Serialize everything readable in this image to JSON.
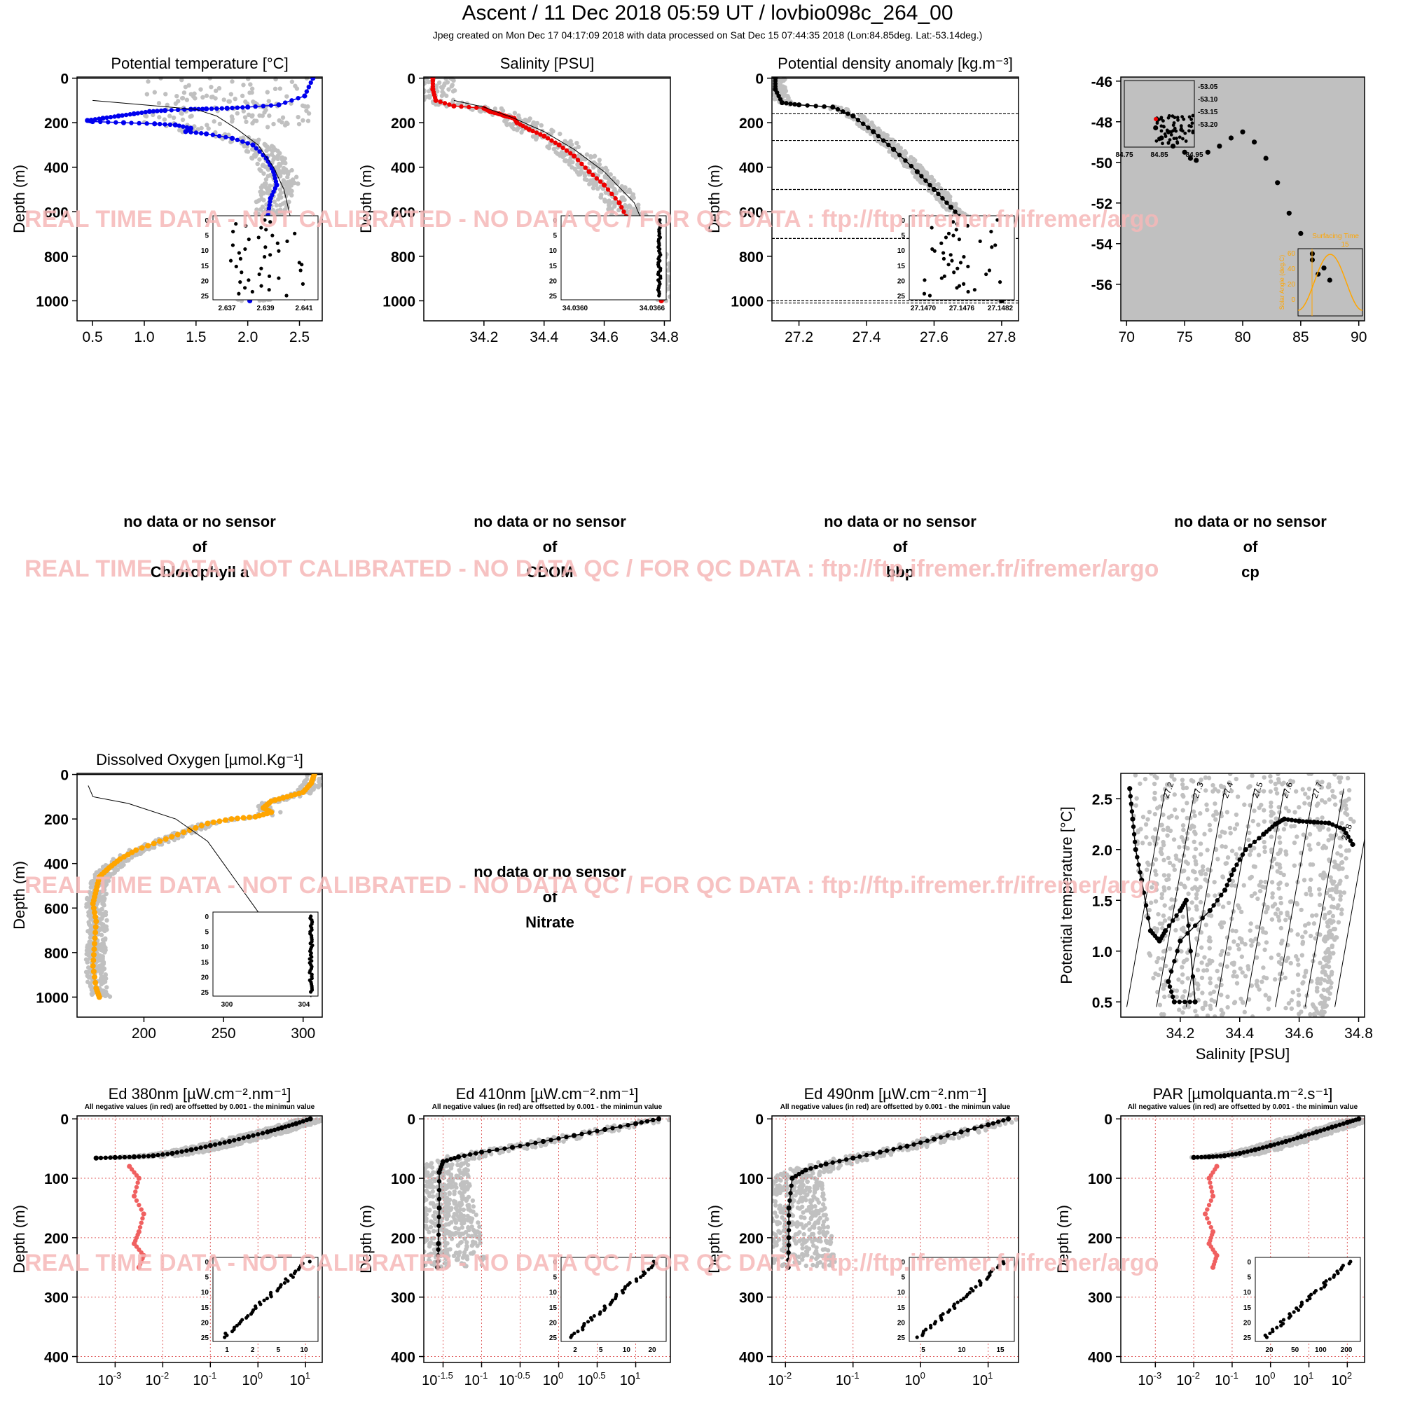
{
  "title": "Ascent / 11 Dec 2018 05:59 UT /  lovbio098c_264_00",
  "subtitle": "Jpeg created on Mon Dec 17 04:17:09 2018 with data processed on Sat Dec 15 07:44:35 2018 (Lon:84.85deg. Lat:-53.14deg.)",
  "watermark": "REAL TIME DATA - NOT CALIBRATED - NO DATA QC   /  FOR QC DATA : ftp://ftp.ifremer.fr/ifremer/argo",
  "colors": {
    "gray": "#c0c0c0",
    "blue": "#0000ee",
    "red": "#ee0000",
    "orange": "#ffa500",
    "neg_red": "#f06060",
    "watermark": "#f6b8b8"
  },
  "no_data": {
    "line1": "no data or no sensor",
    "line2": "of",
    "panels": [
      "Chlorophyll a",
      "CDOM",
      "bbp",
      "cp",
      "Nitrate"
    ]
  },
  "chart_data": [
    {
      "type": "scatter",
      "title": "Potential temperature [°C]",
      "ylabel": "Depth (m)",
      "xlim": [
        0.35,
        2.72
      ],
      "ylim": [
        1090,
        -5
      ],
      "xticks": [
        "0.5",
        "1.0",
        "1.5",
        "2.0",
        "2.5"
      ],
      "yticks": [
        "0",
        "200",
        "400",
        "600",
        "800",
        "1000"
      ],
      "series": [
        {
          "role": "profile",
          "color": "blue",
          "x": [
            2.63,
            2.55,
            2.3,
            2.0,
            1.8,
            1.6,
            1.45,
            1.2,
            1.05,
            0.9,
            0.75,
            0.6,
            0.45,
            0.5,
            0.8,
            1.1,
            1.3,
            1.45,
            1.4,
            1.6,
            1.85,
            2.05,
            2.18,
            2.25,
            2.28,
            2.22,
            2.2,
            2.18,
            2.15,
            2.12,
            2.08,
            2.05,
            2.05,
            2.02
          ],
          "y": [
            0,
            80,
            120,
            130,
            135,
            138,
            140,
            145,
            150,
            160,
            170,
            180,
            190,
            195,
            200,
            205,
            210,
            225,
            240,
            250,
            270,
            300,
            360,
            420,
            480,
            540,
            600,
            660,
            720,
            780,
            840,
            900,
            960,
            1000
          ]
        },
        {
          "role": "climatology",
          "x": [
            0.5,
            1.0,
            1.5,
            1.7,
            1.9,
            2.1,
            2.25,
            2.35,
            2.4,
            2.45,
            2.5,
            2.55
          ],
          "y": [
            100,
            120,
            140,
            170,
            230,
            300,
            400,
            500,
            600,
            700,
            800,
            1000
          ]
        }
      ],
      "inset": {
        "xticks": [
          "2.637",
          "2.639",
          "2.641"
        ],
        "yticks": [
          "0",
          "5",
          "10",
          "15",
          "20",
          "25"
        ]
      }
    },
    {
      "type": "scatter",
      "title": "Salinity [PSU]",
      "ylabel": "Depth (m)",
      "xlim": [
        34.0,
        34.82
      ],
      "ylim": [
        1090,
        -5
      ],
      "xticks": [
        "34.2",
        "34.4",
        "34.6",
        "34.8"
      ],
      "yticks": [
        "0",
        "200",
        "400",
        "600",
        "800",
        "1000"
      ],
      "series": [
        {
          "role": "profile",
          "color": "red",
          "x": [
            34.03,
            34.03,
            34.04,
            34.1,
            34.2,
            34.22,
            34.25,
            34.27,
            34.3,
            34.31,
            34.35,
            34.4,
            34.45,
            34.5,
            34.55,
            34.6,
            34.65,
            34.68,
            34.72,
            34.75,
            34.77,
            34.79
          ],
          "y": [
            0,
            50,
            100,
            125,
            135,
            150,
            160,
            170,
            180,
            200,
            230,
            260,
            300,
            350,
            420,
            480,
            560,
            640,
            720,
            820,
            900,
            1000
          ]
        },
        {
          "role": "climatology",
          "x": [
            34.1,
            34.2,
            34.3,
            34.4,
            34.5,
            34.6,
            34.7,
            34.76,
            34.8
          ],
          "y": [
            100,
            130,
            180,
            240,
            320,
            420,
            560,
            750,
            1000
          ]
        }
      ],
      "inset": {
        "xticks": [
          "34.0360",
          "34.0366"
        ],
        "yticks": [
          "0",
          "5",
          "10",
          "15",
          "20",
          "25"
        ]
      }
    },
    {
      "type": "scatter",
      "title": "Potential density anomaly [kg.m⁻³]",
      "ylabel": "Depth (m)",
      "xlim": [
        27.12,
        27.85
      ],
      "ylim": [
        1090,
        -5
      ],
      "xticks": [
        "27.2",
        "27.4",
        "27.6",
        "27.8"
      ],
      "yticks": [
        "0",
        "200",
        "400",
        "600",
        "800",
        "1000"
      ],
      "hlines": [
        160,
        280,
        500,
        720,
        1000,
        1010
      ],
      "series": [
        {
          "role": "profile",
          "color": "black",
          "x": [
            27.13,
            27.13,
            27.15,
            27.2,
            27.3,
            27.36,
            27.42,
            27.48,
            27.55,
            27.6,
            27.65,
            27.7,
            27.74,
            27.76,
            27.78,
            27.8
          ],
          "y": [
            0,
            50,
            110,
            120,
            130,
            170,
            240,
            320,
            420,
            500,
            580,
            660,
            740,
            820,
            900,
            1000
          ]
        }
      ],
      "inset": {
        "xticks": [
          "27.1470",
          "27.1476",
          "27.1482"
        ],
        "yticks": [
          "0",
          "5",
          "10",
          "15",
          "20",
          "25"
        ]
      }
    },
    {
      "type": "scatter",
      "title": "",
      "xlim": [
        69.5,
        90.5
      ],
      "ylim": [
        -57.8,
        -45.8
      ],
      "xticks": [
        "70",
        "75",
        "80",
        "85",
        "90"
      ],
      "yticks": [
        "-46",
        "-48",
        "-50",
        "-52",
        "-54",
        "-56"
      ],
      "series": [
        {
          "role": "trajectory",
          "color": "black",
          "x": [
            72.5,
            73,
            74,
            75,
            75.5,
            76,
            77,
            78,
            79,
            80,
            81,
            82,
            83,
            84,
            85,
            86,
            87,
            87.5,
            86.5,
            86
          ],
          "y": [
            -48.3,
            -48.8,
            -49.2,
            -49.5,
            -49.8,
            -49.9,
            -49.5,
            -49.2,
            -48.8,
            -48.5,
            -49,
            -49.8,
            -51,
            -52.5,
            -53.5,
            -54.5,
            -55.2,
            -55.8,
            -55.5,
            -54.8
          ]
        }
      ],
      "inset_position": {
        "xticks": [
          "84.75",
          "84.85",
          "84.95"
        ],
        "yticks": [
          "-53.05",
          "-53.10",
          "-53.15",
          "-53.20"
        ]
      },
      "inset_solar": {
        "title": "Surfacing Time",
        "value": "15",
        "ylabel": "Solar Angle (deg.C)",
        "yticks": [
          "60",
          "40",
          "20",
          "0"
        ]
      }
    },
    {
      "type": "scatter",
      "title": "Dissolved Oxygen [µmol.Kg⁻¹]",
      "ylabel": "Depth (m)",
      "xlim": [
        158,
        312
      ],
      "ylim": [
        1090,
        -5
      ],
      "xticks": [
        "200",
        "250",
        "300"
      ],
      "yticks": [
        "0",
        "200",
        "400",
        "600",
        "800",
        "1000"
      ],
      "series": [
        {
          "role": "profile",
          "color": "orange",
          "x": [
            307,
            305,
            300,
            290,
            280,
            275,
            280,
            270,
            255,
            240,
            225,
            210,
            195,
            185,
            178,
            172,
            170,
            168,
            170,
            169,
            168,
            170,
            172
          ],
          "y": [
            0,
            40,
            80,
            100,
            120,
            150,
            170,
            190,
            200,
            220,
            260,
            300,
            340,
            380,
            420,
            460,
            520,
            580,
            660,
            760,
            860,
            960,
            1000
          ]
        },
        {
          "role": "climatology",
          "x": [
            165,
            168,
            190,
            220,
            240,
            250,
            260,
            270,
            280,
            290,
            300,
            305
          ],
          "y": [
            50,
            100,
            130,
            200,
            300,
            400,
            500,
            600,
            700,
            800,
            900,
            1000
          ]
        }
      ],
      "inset": {
        "xticks": [
          "300",
          "304"
        ],
        "yticks": [
          "0",
          "5",
          "10",
          "15",
          "20",
          "25"
        ]
      }
    },
    {
      "type": "scatter",
      "title": "",
      "xlabel": "Salinity [PSU]",
      "ylabel": "Potential temperature [°C]",
      "xlim": [
        34.0,
        34.82
      ],
      "ylim": [
        0.35,
        2.75
      ],
      "xticks": [
        "34.2",
        "34.4",
        "34.6",
        "34.8"
      ],
      "yticks": [
        "0.5",
        "1.0",
        "1.5",
        "2.0",
        "2.5"
      ],
      "isopycnals": [
        "27.2",
        "27.3",
        "27.4",
        "27.5",
        "27.6",
        "27.7",
        "27.8",
        "27.9"
      ],
      "series": [
        {
          "role": "profile",
          "color": "black",
          "x": [
            34.03,
            34.04,
            34.05,
            34.07,
            34.1,
            34.13,
            34.15,
            34.2,
            34.22,
            34.25,
            34.18,
            34.16,
            34.2,
            34.3,
            34.35,
            34.38,
            34.42,
            34.48,
            34.52,
            34.55,
            34.6,
            34.65,
            34.7,
            34.75,
            34.78
          ],
          "y": [
            2.6,
            2.3,
            2.0,
            1.7,
            1.2,
            1.1,
            1.2,
            1.4,
            1.5,
            0.5,
            0.5,
            0.7,
            1.1,
            1.4,
            1.6,
            1.8,
            2.0,
            2.15,
            2.25,
            2.3,
            2.28,
            2.27,
            2.26,
            2.2,
            2.05
          ]
        }
      ]
    },
    {
      "type": "scatter",
      "title": "Ed 380nm [µW.cm⁻².nm⁻¹]",
      "note": "All negative values (in red) are offsetted by 0.001 - the minimun value",
      "ylabel": "Depth (m)",
      "xscale": "log",
      "xlim": [
        -3.8,
        1.35
      ],
      "ylim": [
        410,
        -5
      ],
      "xticks": [
        -3,
        -2,
        -1,
        0,
        1
      ],
      "yticks": [
        "0",
        "100",
        "200",
        "300",
        "400"
      ],
      "series": [
        {
          "role": "profile",
          "color": "black",
          "x": [
            1.1,
            0.8,
            0.5,
            0.2,
            -0.2,
            -0.6,
            -1.0,
            -1.4,
            -1.8,
            -2.2,
            -2.6,
            -3.0,
            -3.4
          ],
          "y": [
            0,
            8,
            15,
            22,
            30,
            38,
            45,
            52,
            58,
            62,
            64,
            65,
            66
          ]
        },
        {
          "role": "negative",
          "color": "neg_red",
          "x": [
            -2.7,
            -2.5,
            -2.6,
            -2.4,
            -2.5,
            -2.6,
            -2.4,
            -2.5
          ],
          "y": [
            80,
            100,
            130,
            160,
            190,
            210,
            230,
            250
          ]
        }
      ],
      "inset": {
        "xticks": [
          "1",
          "2",
          "5",
          "10"
        ],
        "yticks": [
          "0",
          "5",
          "10",
          "15",
          "20",
          "25"
        ]
      }
    },
    {
      "type": "scatter",
      "title": "Ed 410nm [µW.cm⁻².nm⁻¹]",
      "note": "All negative values (in red) are offsetted by 0.001 - the minimun value",
      "ylabel": "Depth (m)",
      "xscale": "log",
      "xlim": [
        -1.75,
        1.45
      ],
      "ylim": [
        410,
        -5
      ],
      "xticks": [
        -1.5,
        -1,
        -0.5,
        0,
        0.5,
        1
      ],
      "yticks": [
        "0",
        "100",
        "200",
        "300",
        "400"
      ],
      "series": [
        {
          "role": "profile",
          "color": "black",
          "x": [
            1.3,
            1.0,
            0.6,
            0.2,
            -0.2,
            -0.6,
            -1.0,
            -1.3,
            -1.5,
            -1.55,
            -1.55,
            -1.56,
            -1.57
          ],
          "y": [
            0,
            8,
            18,
            28,
            38,
            48,
            56,
            64,
            72,
            90,
            150,
            210,
            250
          ]
        }
      ],
      "inset": {
        "xticks": [
          "2",
          "5",
          "10",
          "20"
        ],
        "yticks": [
          "0",
          "5",
          "10",
          "15",
          "20",
          "25"
        ]
      }
    },
    {
      "type": "scatter",
      "title": "Ed 490nm [µW.cm⁻².nm⁻¹]",
      "note": "All negative values (in red) are offsetted by 0.001 - the minimun value",
      "ylabel": "Depth (m)",
      "xscale": "log",
      "xlim": [
        -2.2,
        1.45
      ],
      "ylim": [
        410,
        -5
      ],
      "xticks": [
        -2,
        -1,
        0,
        1
      ],
      "yticks": [
        "0",
        "100",
        "200",
        "300",
        "400"
      ],
      "series": [
        {
          "role": "profile",
          "color": "black",
          "x": [
            1.3,
            1.0,
            0.6,
            0.2,
            -0.2,
            -0.6,
            -1.0,
            -1.4,
            -1.7,
            -1.9,
            -1.95,
            -1.95,
            -1.96
          ],
          "y": [
            0,
            10,
            22,
            34,
            46,
            56,
            66,
            76,
            86,
            100,
            150,
            200,
            250
          ]
        }
      ],
      "inset": {
        "xticks": [
          "5",
          "10",
          "15"
        ],
        "yticks": [
          "0",
          "5",
          "10",
          "15",
          "20",
          "25"
        ]
      }
    },
    {
      "type": "scatter",
      "title": "PAR [µmolquanta.m⁻².s⁻¹]",
      "note": "All negative values (in red) are offsetted by 0.001 - the minimun value",
      "ylabel": "Depth (m)",
      "xscale": "log",
      "xlim": [
        -3.9,
        2.45
      ],
      "ylim": [
        410,
        -5
      ],
      "xticks": [
        -3,
        -2,
        -1,
        0,
        1,
        2
      ],
      "yticks": [
        "0",
        "100",
        "200",
        "300",
        "400"
      ],
      "series": [
        {
          "role": "profile",
          "color": "black",
          "x": [
            2.3,
            2.0,
            1.6,
            1.2,
            0.8,
            0.4,
            0.0,
            -0.4,
            -0.8,
            -1.2,
            -1.6,
            -2.0
          ],
          "y": [
            0,
            6,
            14,
            22,
            30,
            38,
            45,
            52,
            58,
            62,
            64,
            65
          ]
        },
        {
          "role": "negative",
          "color": "neg_red",
          "x": [
            -1.4,
            -1.6,
            -1.5,
            -1.7,
            -1.5,
            -1.6,
            -1.4,
            -1.5
          ],
          "y": [
            80,
            100,
            130,
            160,
            190,
            210,
            230,
            250
          ]
        }
      ],
      "inset": {
        "xticks": [
          "20",
          "50",
          "100",
          "200"
        ],
        "yticks": [
          "0",
          "5",
          "10",
          "15",
          "20",
          "25"
        ]
      }
    }
  ]
}
